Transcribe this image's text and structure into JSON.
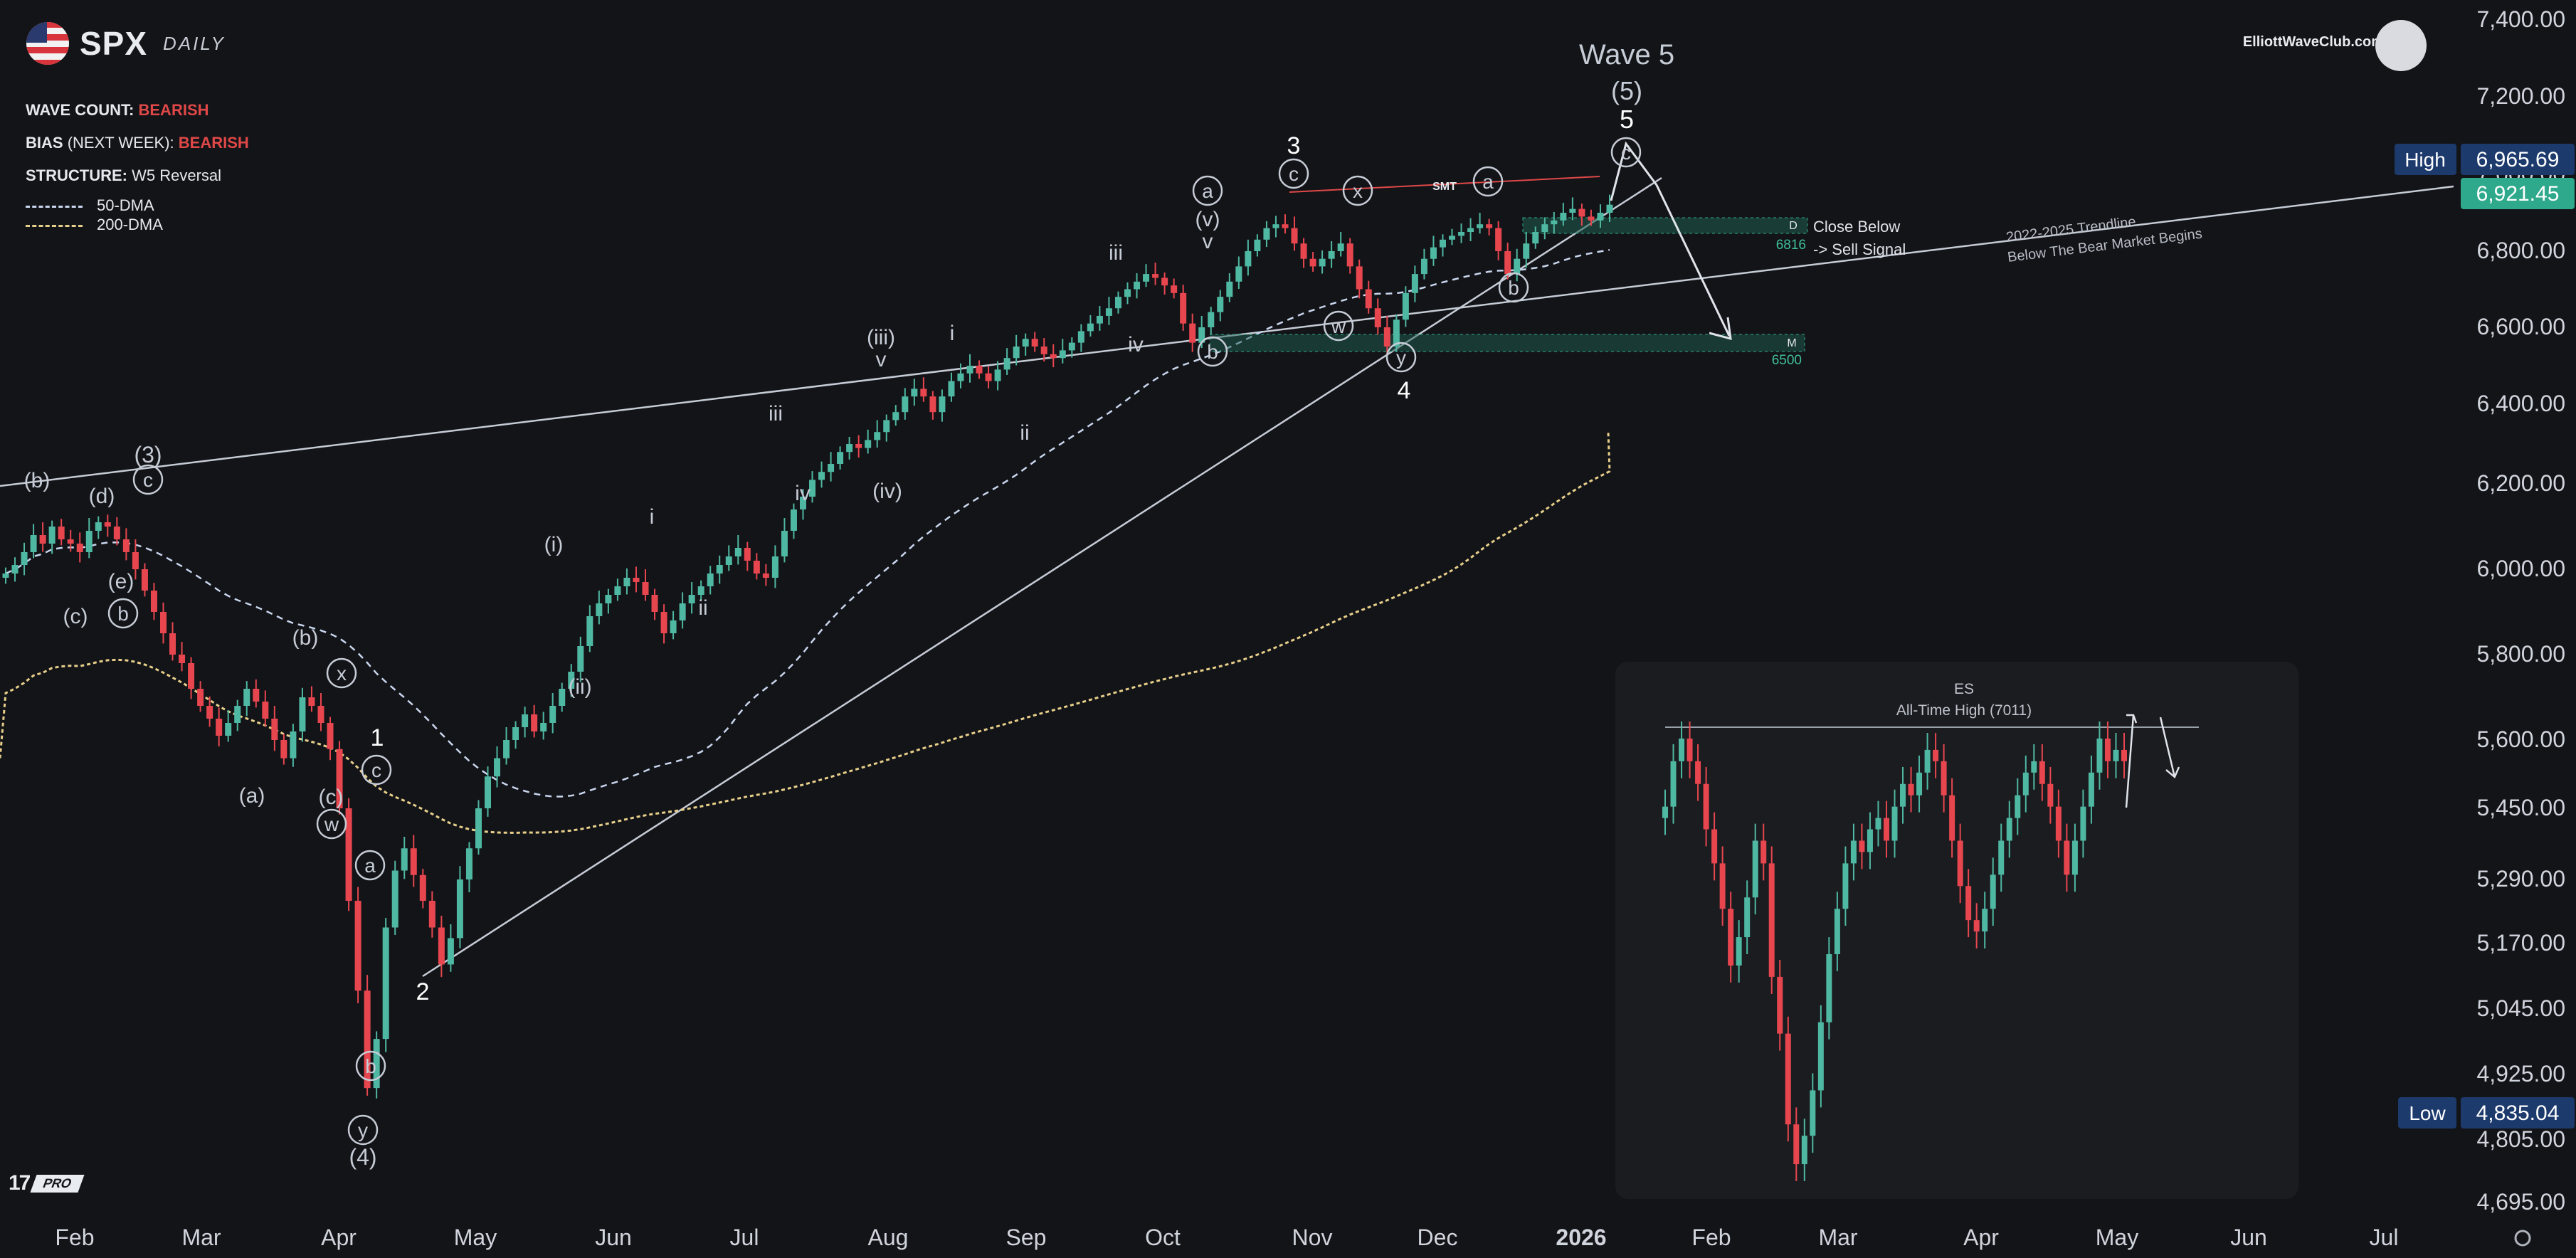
{
  "header": {
    "symbol": "SPX",
    "timeframe": "DAILY",
    "wave_count_label": "WAVE COUNT:",
    "wave_count_value": "BEARISH",
    "bias_label": "BIAS",
    "bias_qualifier": "(NEXT WEEK):",
    "bias_value": "BEARISH",
    "structure_label": "STRUCTURE:",
    "structure_value": "W5 Reversal",
    "legend_50": "50-DMA",
    "legend_200": "200-DMA",
    "brand": "ElliottWaveClub.com",
    "platform": "PRO"
  },
  "colors": {
    "background": "#131418",
    "up": "#4fb8a2",
    "down": "#e8464f",
    "dma50": "#c9d6ee",
    "dma200": "#e7cf8a",
    "label_box": "#1d3a6d",
    "last_price_box": "#2fa98b",
    "bearish_text": "#e04848"
  },
  "chart_data": [
    {
      "type": "candlestick",
      "x_ticks": [
        "Feb",
        "Mar",
        "Apr",
        "May",
        "Jun",
        "Jul",
        "Aug",
        "Sep",
        "Oct",
        "Nov",
        "Dec",
        "2026",
        "Feb",
        "Mar",
        "Apr",
        "May",
        "Jun",
        "Jul"
      ],
      "y_ticks": [
        "7,400.00",
        "7,200.00",
        "7,000.00",
        "6,800.00",
        "6,600.00",
        "6,400.00",
        "6,200.00",
        "6,000.00",
        "5,800.00",
        "5,600.00",
        "5,450.00",
        "5,290.00",
        "5,170.00",
        "5,045.00",
        "4,925.00",
        "4,805.00",
        "4,695.00"
      ],
      "y_axis_values": [
        7400,
        7200,
        7000,
        6800,
        6600,
        6400,
        6200,
        6000,
        5800,
        5600,
        5450,
        5290,
        5170,
        5045,
        4925,
        4805,
        4695
      ],
      "high_label": "High",
      "high_value": "6,965.69",
      "last_value": "6,921.45",
      "low_label": "Low",
      "low_value": "4,835.04",
      "grid": false,
      "title": "Wave 5",
      "wave_labels": {
        "major": [
          "(3)",
          "(4)",
          "(5)",
          "1",
          "2",
          "3",
          "4",
          "5"
        ],
        "minor": [
          "(b)",
          "(d)",
          "(c)",
          "(e)",
          "(a)",
          "(b)",
          "(c)",
          "(i)",
          "(ii)",
          "(iii)",
          "(iv)",
          "(v)",
          "i",
          "ii",
          "iii",
          "iv",
          "v",
          "i",
          "ii",
          "iii",
          "iv",
          "v"
        ],
        "circled": [
          "c",
          "b",
          "x",
          "c",
          "w",
          "a",
          "b",
          "y",
          "a",
          "b",
          "c",
          "x",
          "a",
          "w",
          "y",
          "b",
          "c"
        ]
      },
      "annotations": {
        "smt": "SMT",
        "close_below": "Close Below",
        "sell_signal": "-> Sell Signal",
        "zone_d_tag": "D",
        "zone_d_value": "6816",
        "zone_m_tag": "M",
        "zone_m_value": "6500",
        "trendline_1": "2022-2025 Trendline",
        "trendline_2": "Below The Bear Market Begins"
      },
      "closes": [
        5990,
        6010,
        6040,
        6080,
        6060,
        6100,
        6070,
        6060,
        6040,
        6090,
        6110,
        6100,
        6070,
        6040,
        6000,
        5950,
        5900,
        5850,
        5800,
        5780,
        5720,
        5680,
        5650,
        5610,
        5640,
        5680,
        5720,
        5690,
        5650,
        5600,
        5560,
        5620,
        5700,
        5680,
        5640,
        5580,
        5450,
        5250,
        5080,
        4900,
        4990,
        5200,
        5310,
        5360,
        5300,
        5250,
        5200,
        5130,
        5180,
        5290,
        5360,
        5450,
        5520,
        5560,
        5600,
        5630,
        5660,
        5620,
        5640,
        5680,
        5720,
        5760,
        5820,
        5890,
        5920,
        5940,
        5960,
        5980,
        5970,
        5940,
        5900,
        5850,
        5880,
        5920,
        5940,
        5960,
        5990,
        6010,
        6030,
        6050,
        6020,
        5990,
        5980,
        6030,
        6090,
        6140,
        6170,
        6210,
        6230,
        6250,
        6280,
        6300,
        6290,
        6310,
        6330,
        6360,
        6380,
        6420,
        6440,
        6420,
        6380,
        6420,
        6460,
        6480,
        6500,
        6480,
        6460,
        6490,
        6520,
        6550,
        6570,
        6550,
        6530,
        6520,
        6540,
        6560,
        6590,
        6610,
        6630,
        6650,
        6680,
        6700,
        6720,
        6740,
        6730,
        6710,
        6690,
        6610,
        6560,
        6600,
        6640,
        6680,
        6720,
        6760,
        6800,
        6830,
        6860,
        6870,
        6860,
        6820,
        6780,
        6760,
        6780,
        6800,
        6820,
        6760,
        6700,
        6650,
        6600,
        6550,
        6620,
        6690,
        6740,
        6780,
        6810,
        6830,
        6840,
        6850,
        6860,
        6870,
        6860,
        6800,
        6740,
        6780,
        6820,
        6850,
        6870,
        6880,
        6900,
        6910,
        6890,
        6880,
        6900,
        6921
      ]
    },
    {
      "type": "candlestick",
      "title": "ES",
      "subtitle": "All-Time High (7011)",
      "closes": [
        5480,
        5560,
        5600,
        5560,
        5520,
        5440,
        5380,
        5300,
        5200,
        5250,
        5320,
        5420,
        5380,
        5180,
        5080,
        4920,
        4850,
        4900,
        4980,
        5100,
        5220,
        5300,
        5380,
        5420,
        5400,
        5440,
        5460,
        5420,
        5480,
        5520,
        5500,
        5540,
        5580,
        5560,
        5500,
        5420,
        5340,
        5280,
        5260,
        5300,
        5360,
        5420,
        5460,
        5500,
        5540,
        5560,
        5520,
        5480,
        5420,
        5360,
        5420,
        5480,
        5540,
        5600,
        5560,
        5580,
        5560
      ]
    }
  ]
}
